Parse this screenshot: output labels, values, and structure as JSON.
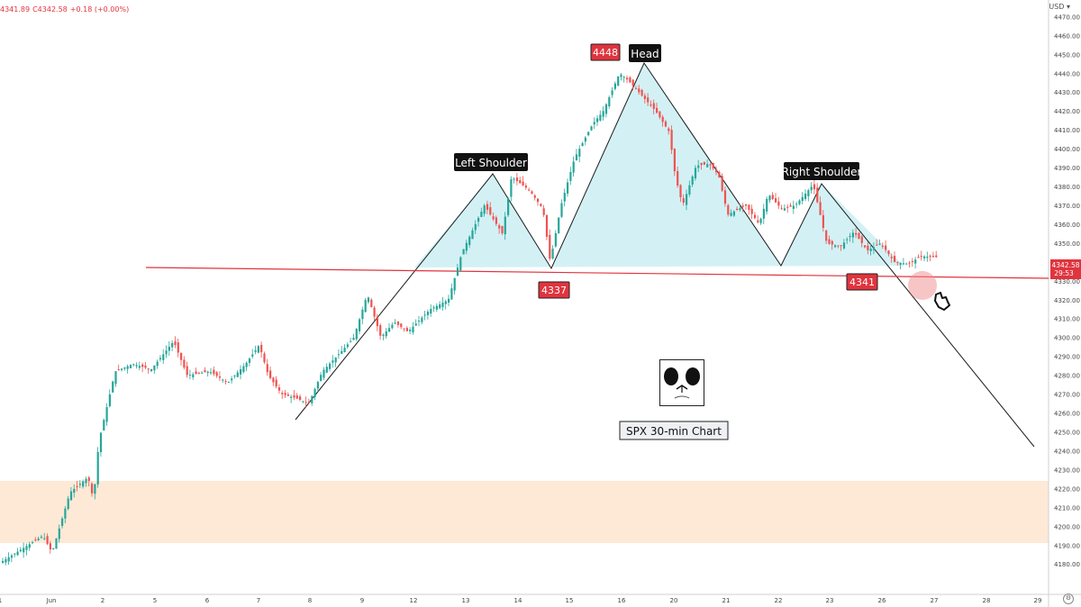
{
  "header": {
    "ohlc_partial": "4341.89",
    "close": "C4342.58",
    "change": "+0.18 (+0.00%)",
    "currency": "USD"
  },
  "labels": {
    "left_shoulder": "Left Shoulder",
    "head": "Head",
    "right_shoulder": "Right Shoulder",
    "chart_caption": "SPX 30-min Chart",
    "level_4448": "4448",
    "level_4337": "4337",
    "level_4341": "4341",
    "last_price": "4342.58",
    "countdown": "29:53"
  },
  "colors": {
    "up": "#26a69a",
    "down": "#ef5350",
    "pattern_fill": "#c8eef2",
    "neckline": "#e0343e",
    "zone": "#fde9d6"
  },
  "chart_data": {
    "type": "candlestick",
    "title": "SPX 30-min Chart",
    "ylim": [
      4172,
      4474
    ],
    "y_ticks": [
      4180,
      4190,
      4200,
      4210,
      4220,
      4230,
      4240,
      4250,
      4260,
      4270,
      4280,
      4290,
      4300,
      4310,
      4320,
      4330,
      4340,
      4350,
      4360,
      4370,
      4380,
      4390,
      4400,
      4410,
      4420,
      4430,
      4440,
      4450,
      4460,
      4470
    ],
    "x_tick_labels": [
      "1",
      "Jun",
      "2",
      "5",
      "6",
      "7",
      "8",
      "9",
      "12",
      "13",
      "14",
      "15",
      "16",
      "20",
      "21",
      "22",
      "23",
      "26",
      "27",
      "28",
      "29"
    ],
    "price_path": [
      [
        0,
        4180
      ],
      [
        50,
        4195
      ],
      [
        60,
        4186
      ],
      [
        80,
        4218
      ],
      [
        100,
        4226
      ],
      [
        106,
        4214
      ],
      [
        112,
        4245
      ],
      [
        130,
        4282
      ],
      [
        150,
        4286
      ],
      [
        170,
        4283
      ],
      [
        195,
        4298
      ],
      [
        210,
        4280
      ],
      [
        235,
        4282
      ],
      [
        255,
        4276
      ],
      [
        275,
        4286
      ],
      [
        290,
        4296
      ],
      [
        300,
        4280
      ],
      [
        315,
        4270
      ],
      [
        330,
        4268
      ],
      [
        345,
        4265
      ],
      [
        360,
        4282
      ],
      [
        380,
        4292
      ],
      [
        395,
        4300
      ],
      [
        410,
        4323
      ],
      [
        425,
        4300
      ],
      [
        440,
        4308
      ],
      [
        455,
        4303
      ],
      [
        480,
        4315
      ],
      [
        500,
        4320
      ],
      [
        515,
        4345
      ],
      [
        540,
        4370
      ],
      [
        560,
        4355
      ],
      [
        570,
        4385
      ],
      [
        590,
        4378
      ],
      [
        605,
        4368
      ],
      [
        613,
        4340
      ],
      [
        625,
        4370
      ],
      [
        640,
        4395
      ],
      [
        660,
        4413
      ],
      [
        672,
        4420
      ],
      [
        690,
        4440
      ],
      [
        700,
        4436
      ],
      [
        715,
        4428
      ],
      [
        730,
        4420
      ],
      [
        745,
        4409
      ],
      [
        752,
        4385
      ],
      [
        760,
        4370
      ],
      [
        775,
        4391
      ],
      [
        790,
        4392
      ],
      [
        800,
        4386
      ],
      [
        810,
        4365
      ],
      [
        830,
        4370
      ],
      [
        845,
        4360
      ],
      [
        855,
        4376
      ],
      [
        870,
        4368
      ],
      [
        885,
        4370
      ],
      [
        905,
        4381
      ],
      [
        920,
        4350
      ],
      [
        935,
        4348
      ],
      [
        950,
        4356
      ],
      [
        965,
        4346
      ],
      [
        980,
        4350
      ],
      [
        995,
        4340
      ],
      [
        1010,
        4339
      ],
      [
        1025,
        4343
      ],
      [
        1040,
        4342.58
      ]
    ],
    "highlighted_levels": [
      4448,
      4337,
      4341
    ],
    "annotations": [
      "Left Shoulder",
      "Head",
      "Right Shoulder"
    ],
    "last_price": 4342.58
  }
}
